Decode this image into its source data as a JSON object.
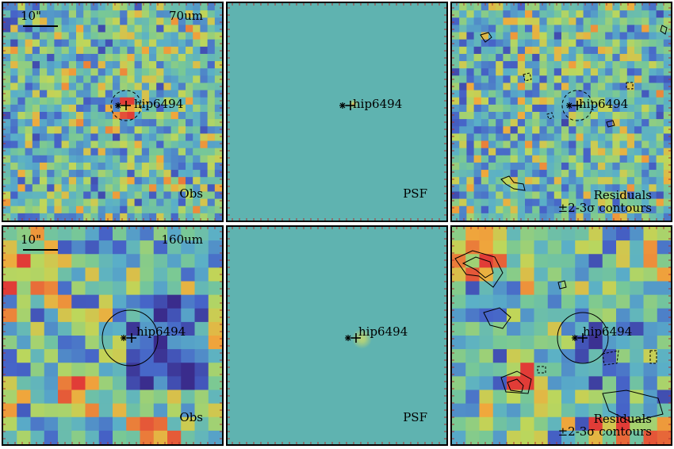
{
  "source_name": "hip6494",
  "rows": [
    {
      "band": "70um",
      "scale": "10\"",
      "panels": [
        {
          "type": "obs",
          "label": "Obs"
        },
        {
          "type": "psf",
          "label": "PSF"
        },
        {
          "type": "res",
          "label1": "Residuals",
          "label2": "±2-3σ contours"
        }
      ]
    },
    {
      "band": "160um",
      "scale": "10\"",
      "panels": [
        {
          "type": "obs",
          "label": "Obs"
        },
        {
          "type": "psf",
          "label": "PSF"
        },
        {
          "type": "res",
          "label1": "Residuals",
          "label2": "±2-3σ contours"
        }
      ]
    }
  ],
  "colors": {
    "background_teal": "#5fb3b0",
    "low": "#3b2f8f",
    "mid": "#6ab8a8",
    "high": "#f08a3c",
    "peak": "#e2443a"
  }
}
